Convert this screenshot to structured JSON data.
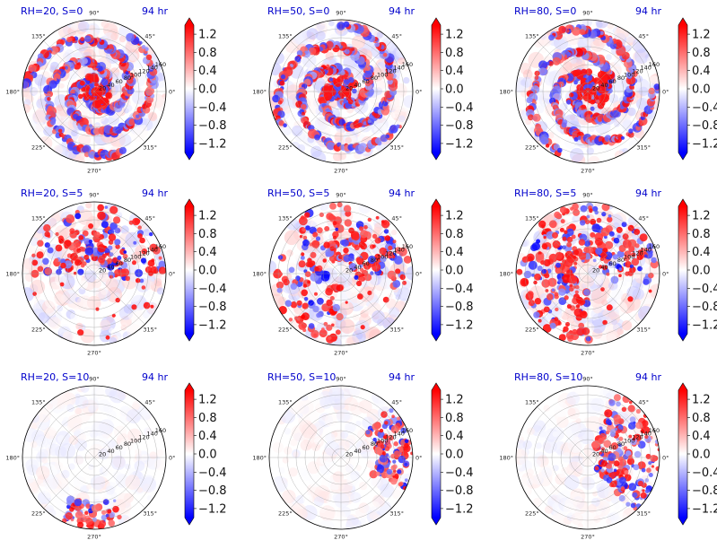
{
  "chart_data": {
    "type": "heatmap",
    "layout": "3x3 polar panels",
    "panels": [
      {
        "label": "RH=20, S=0",
        "time": "94 hr",
        "rh": 20,
        "s": 0
      },
      {
        "label": "RH=50, S=0",
        "time": "94 hr",
        "rh": 50,
        "s": 0
      },
      {
        "label": "RH=80, S=0",
        "time": "94 hr",
        "rh": 80,
        "s": 0
      },
      {
        "label": "RH=20, S=5",
        "time": "94 hr",
        "rh": 20,
        "s": 5
      },
      {
        "label": "RH=50, S=5",
        "time": "94 hr",
        "rh": 50,
        "s": 5
      },
      {
        "label": "RH=80, S=5",
        "time": "94 hr",
        "rh": 80,
        "s": 5
      },
      {
        "label": "RH=20, S=10",
        "time": "94 hr",
        "rh": 20,
        "s": 10
      },
      {
        "label": "RH=50, S=10",
        "time": "94 hr",
        "rh": 50,
        "s": 10
      },
      {
        "label": "RH=80, S=10",
        "time": "94 hr",
        "rh": 80,
        "s": 10
      }
    ],
    "angular_ticks": [
      "0°",
      "45°",
      "90°",
      "135°",
      "180°",
      "225°",
      "270°",
      "315°"
    ],
    "radial_ticks": [
      "20",
      "40",
      "60",
      "80",
      "100",
      "120",
      "140",
      "160"
    ],
    "radial_range": [
      0,
      160
    ],
    "colorbar": {
      "colormap": "bwr",
      "range": [
        -1.4,
        1.4
      ],
      "extend": "both",
      "ticks": [
        "1.2",
        "0.8",
        "0.4",
        "0.0",
        "−0.4",
        "−0.8",
        "−1.2"
      ],
      "tick_values": [
        1.2,
        0.8,
        0.4,
        0.0,
        -0.4,
        -0.8,
        -1.2
      ]
    }
  },
  "colors": {
    "positive": "#ff0000",
    "negative": "#0000ff",
    "zero": "#ffffff",
    "title": "#0000cc"
  }
}
